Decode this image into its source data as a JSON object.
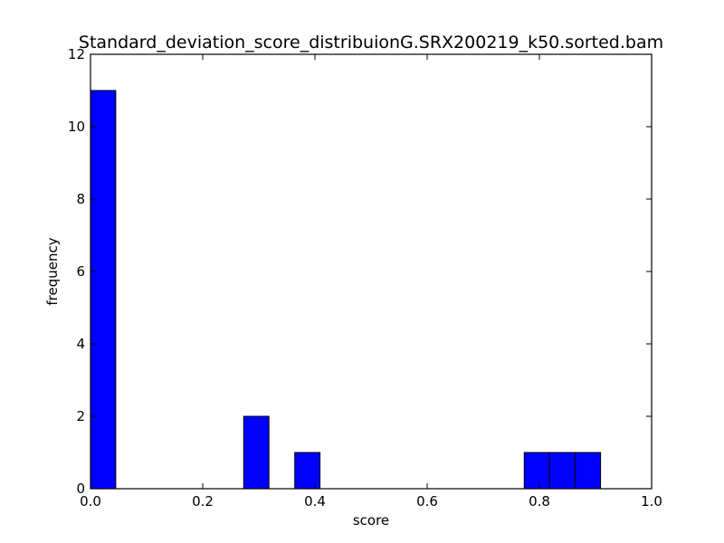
{
  "chart_data": {
    "type": "bar",
    "title": "Standard_deviation_score_distribuionG.SRX200219_k50.sorted.bam",
    "xlabel": "score",
    "ylabel": "frequency",
    "xlim": [
      0.0,
      1.0
    ],
    "ylim": [
      0,
      12
    ],
    "xticks": [
      "0.0",
      "0.2",
      "0.4",
      "0.6",
      "0.8",
      "1.0"
    ],
    "yticks": [
      "0",
      "2",
      "4",
      "6",
      "8",
      "10",
      "12"
    ],
    "grid": false,
    "bar_color": "#0000ff",
    "bins": [
      {
        "x0": 0.0,
        "x1": 0.045,
        "count": 11
      },
      {
        "x0": 0.273,
        "x1": 0.318,
        "count": 2
      },
      {
        "x0": 0.364,
        "x1": 0.409,
        "count": 1
      },
      {
        "x0": 0.773,
        "x1": 0.818,
        "count": 1
      },
      {
        "x0": 0.818,
        "x1": 0.864,
        "count": 1
      },
      {
        "x0": 0.864,
        "x1": 0.909,
        "count": 1
      }
    ]
  }
}
